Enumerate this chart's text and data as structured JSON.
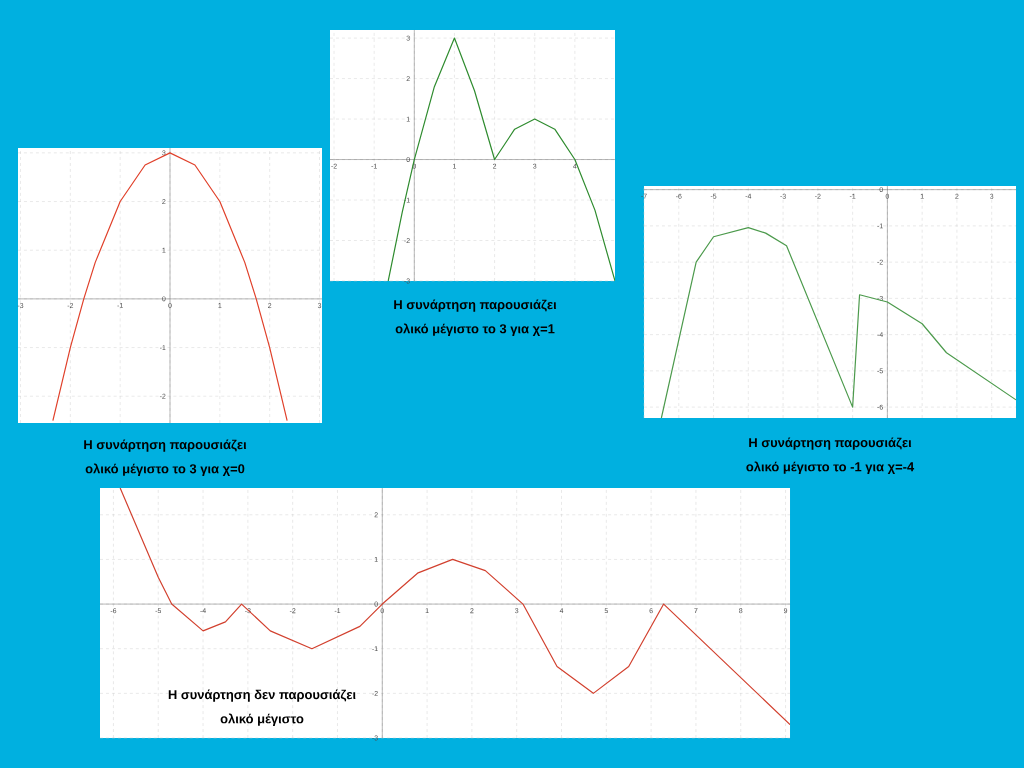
{
  "chart_data": [
    {
      "type": "line",
      "x": [
        -2.35,
        -2,
        -1.73,
        -1.5,
        -1,
        -0.5,
        0,
        0.5,
        1,
        1.5,
        1.73,
        2,
        2.35
      ],
      "series": [
        {
          "color": "#e0402a",
          "values": [
            -2.5,
            -1,
            0,
            0.75,
            2,
            2.75,
            3,
            2.75,
            2,
            0.75,
            0,
            -1,
            -2.5
          ]
        }
      ],
      "xlim": [
        -3.05,
        3.05
      ],
      "ylim": [
        -2.55,
        3.1
      ],
      "xticks": [
        -3,
        -2,
        -1,
        0,
        1,
        2,
        3
      ],
      "yticks": [
        -2,
        -1,
        0,
        1,
        2,
        3
      ],
      "grid": true,
      "annotations": [
        "Η συνάρτηση παρουσιάζει",
        "ολικό μέγιστο το 3 για χ=0"
      ]
    },
    {
      "type": "line",
      "x": [
        -0.65,
        -0.3,
        0,
        0.5,
        1,
        1.5,
        2,
        2.5,
        3,
        3.5,
        4,
        4.5,
        5
      ],
      "series": [
        {
          "color": "#2e8b2e",
          "values": [
            -3,
            -1.3,
            0,
            1.8,
            3,
            1.7,
            0,
            0.75,
            1,
            0.75,
            0,
            -1.25,
            -3
          ]
        }
      ],
      "xlim": [
        -2.1,
        5
      ],
      "ylim": [
        -3,
        3.2
      ],
      "xticks": [
        -2,
        -1,
        0,
        1,
        2,
        3,
        4
      ],
      "yticks": [
        -3,
        -2,
        -1,
        0,
        1,
        2,
        3
      ],
      "grid": true,
      "annotations": [
        "Η συνάρτηση παρουσιάζει",
        "ολικό μέγιστο το 3 για χ=1"
      ]
    },
    {
      "type": "line",
      "x": [
        -6.5,
        -5.5,
        -5,
        -4,
        -3.5,
        -2.9,
        -1,
        -0.8,
        0,
        1,
        1.7,
        3.7
      ],
      "series": [
        {
          "color": "#4c9a4c",
          "values": [
            -6.3,
            -2,
            -1.3,
            -1.05,
            -1.2,
            -1.55,
            -6,
            -2.9,
            -3.1,
            -3.7,
            -4.5,
            -5.8
          ]
        }
      ],
      "xlim": [
        -7,
        3.7
      ],
      "ylim": [
        -6.3,
        0.1
      ],
      "xticks": [
        -7,
        -6,
        -5,
        -4,
        -3,
        -2,
        -1,
        0,
        1,
        2,
        3
      ],
      "yticks": [
        -6,
        -5,
        -4,
        -3,
        -2,
        -1,
        0
      ],
      "grid": true,
      "annotations": [
        "Η συνάρτηση παρουσιάζει",
        "ολικό μέγιστο το -1 για χ=-4"
      ]
    },
    {
      "type": "line",
      "x": [
        -5.85,
        -5,
        -4.7,
        -4,
        -3.5,
        -3.14,
        -2.5,
        -1.57,
        -0.5,
        0,
        0.8,
        1.57,
        2.3,
        3.14,
        3.9,
        4.71,
        5.5,
        6.28,
        9.1
      ],
      "series": [
        {
          "color": "#d2402e",
          "values": [
            2.6,
            0.6,
            0,
            -0.6,
            -0.4,
            0,
            -0.6,
            -1,
            -0.5,
            0,
            0.7,
            1,
            0.75,
            0,
            -1.4,
            -2,
            -1.4,
            0,
            -2.7
          ]
        }
      ],
      "xlim": [
        -6.3,
        9.1
      ],
      "ylim": [
        -3,
        2.6
      ],
      "xticks": [
        -6,
        -5,
        -4,
        -3,
        -2,
        -1,
        0,
        1,
        2,
        3,
        4,
        5,
        6,
        7,
        8,
        9
      ],
      "yticks": [
        -3,
        -2,
        -1,
        0,
        1,
        2
      ],
      "grid": true,
      "annotations": [
        "Η συνάρτηση δεν παρουσιάζει",
        "ολικό μέγιστο"
      ]
    }
  ]
}
